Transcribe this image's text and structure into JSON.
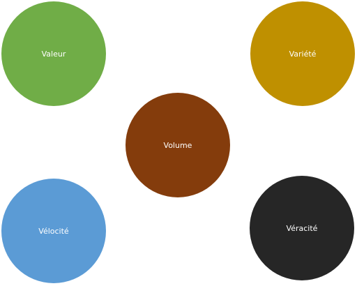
{
  "nodes": {
    "valeur": {
      "label": "Valeur",
      "color": "#70ad47"
    },
    "variete": {
      "label": "Variété",
      "color": "#bf9000"
    },
    "volume": {
      "label": "Volume",
      "color": "#843c0c"
    },
    "velocite": {
      "label": "Vélocité",
      "color": "#5b9bd5"
    },
    "veracite": {
      "label": "Véracité",
      "color": "#262626"
    }
  }
}
